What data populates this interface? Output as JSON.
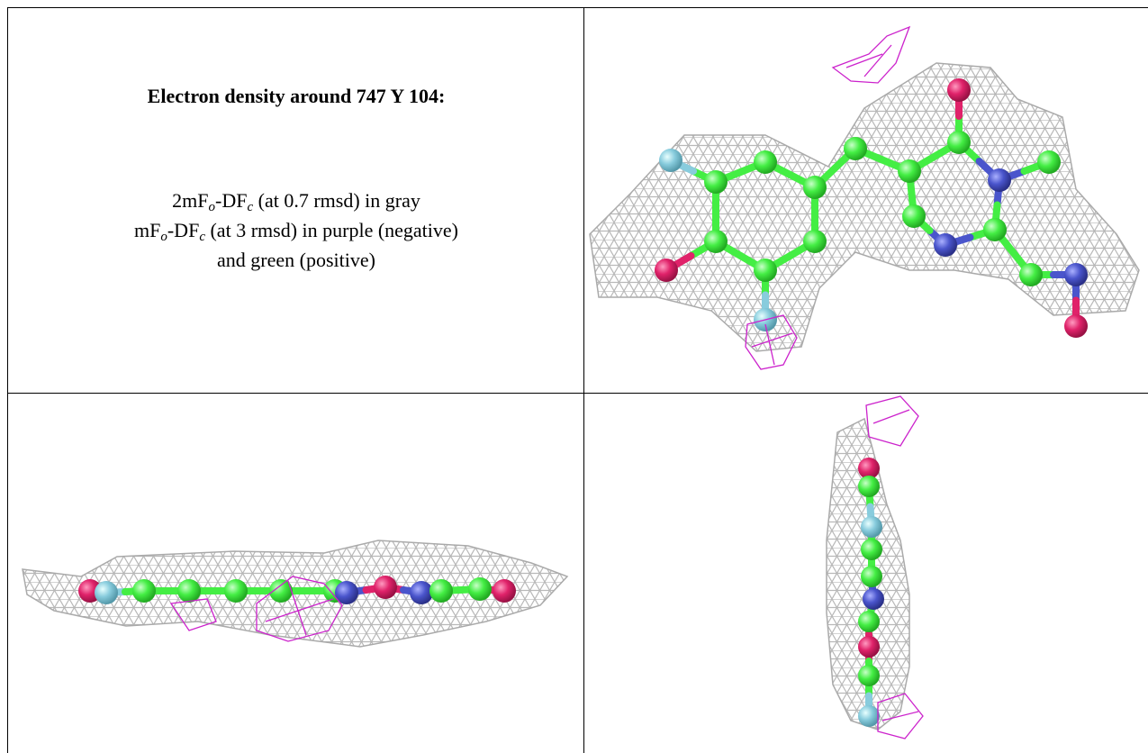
{
  "header": {
    "title": "Electron density around 747 Y 104:"
  },
  "caption": {
    "lines": [
      [
        "2mF",
        "o",
        "-DF",
        "c",
        " (at 0.7 rmsd) in gray"
      ],
      [
        "mF",
        "o",
        "-DF",
        "c",
        " (at 3 rmsd) in purple (negative)"
      ],
      [
        "and green (positive)"
      ]
    ]
  }
}
